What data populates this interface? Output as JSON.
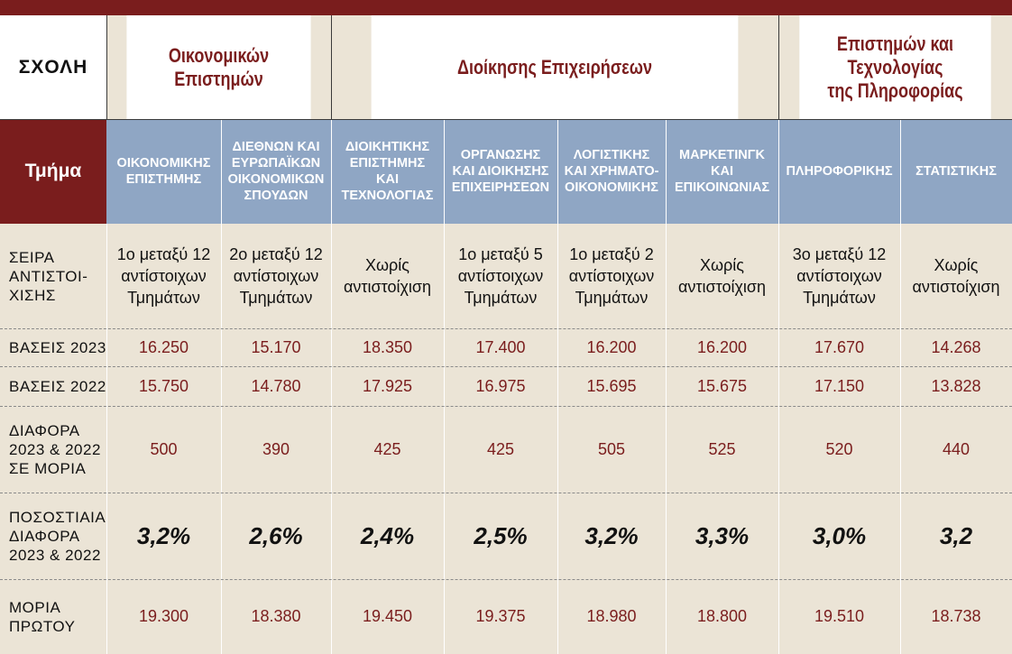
{
  "header": {
    "school_label": "ΣΧΟΛΗ",
    "dept_label": "Τμήμα",
    "schools": [
      "Οικονομικών\nΕπιστημών",
      "Διοίκησης Επιχειρήσεων",
      "Επιστημών και\nΤεχνολογίας\nτης Πληροφορίας"
    ]
  },
  "departments": [
    "ΟΙΚΟΝΟΜΙΚΗΣ\nΕΠΙΣΤΗΜΗΣ",
    "ΔΙΕΘΝΩΝ ΚΑΙ\nΕΥΡΩΠΑΪΚΩΝ\nΟΙΚΟΝΟΜΙΚΩΝ\nΣΠΟΥΔΩΝ",
    "ΔΙΟΙΚΗΤΙΚΗΣ\nΕΠΙΣΤΗΜΗΣ\nΚΑΙ\nΤΕΧΝΟΛΟΓΙΑΣ",
    "ΟΡΓΑΝΩΣΗΣ\nΚΑΙ ΔΙΟΙΚΗΣΗΣ\nΕΠΙΧΕΙΡΗΣΕΩΝ",
    "ΛΟΓΙΣΤΙΚΗΣ\nΚΑΙ ΧΡΗΜΑΤΟ-\nΟΙΚΟΝΟΜΙΚΗΣ",
    "ΜΑΡΚΕΤΙΝΓΚ\nΚΑΙ\nΕΠΙΚΟΙΝΩΝΙΑΣ",
    "ΠΛΗΡΟΦΟΡΙΚΗΣ",
    "ΣΤΑΤΙΣΤΙΚΗΣ"
  ],
  "row_labels": {
    "seira": "ΣΕΙΡΑ\nΑΝΤΙΣΤΟΙ-\nΧΙΣΗΣ",
    "vaseis2023": "ΒΑΣΕΙΣ 2023",
    "vaseis2022": "ΒΑΣΕΙΣ 2022",
    "diafora": "ΔΙΑΦΟΡΑ\n2023 & 2022\nΣΕ ΜΟΡΙΑ",
    "pososti": "ΠΟΣΟΣΤΙΑΙΑ\nΔΙΑΦΟΡΑ\n2023 & 2022",
    "moria": "ΜΟΡΙΑ\nΠΡΩΤΟΥ"
  },
  "seira": [
    "1ο μεταξύ 12\nαντίστοιχων\nΤμημάτων",
    "2ο μεταξύ 12\nαντίστοιχων\nΤμημάτων",
    "Χωρίς\nαντιστοίχιση",
    "1ο μεταξύ 5\nαντίστοιχων\nΤμημάτων",
    "1ο μεταξύ 2\nαντίστοιχων\nΤμημάτων",
    "Χωρίς\nαντιστοίχιση",
    "3ο μεταξύ 12\nαντίστοιχων\nΤμημάτων",
    "Χωρίς\nαντιστοίχιση"
  ],
  "vaseis2023": [
    "16.250",
    "15.170",
    "18.350",
    "17.400",
    "16.200",
    "16.200",
    "17.670",
    "14.268"
  ],
  "vaseis2022": [
    "15.750",
    "14.780",
    "17.925",
    "16.975",
    "15.695",
    "15.675",
    "17.150",
    "13.828"
  ],
  "diafora": [
    "500",
    "390",
    "425",
    "425",
    "505",
    "525",
    "520",
    "440"
  ],
  "pososti": [
    "3,2%",
    "2,6%",
    "2,4%",
    "2,5%",
    "3,2%",
    "3,3%",
    "3,0%",
    "3,2"
  ],
  "moria": [
    "19.300",
    "18.380",
    "19.450",
    "19.375",
    "18.980",
    "18.800",
    "19.510",
    "18.738"
  ],
  "colors": {
    "maroon": "#7a1d1d",
    "blue_header": "#8fa6c4",
    "beige": "#ebe4d6",
    "white": "#ffffff"
  }
}
